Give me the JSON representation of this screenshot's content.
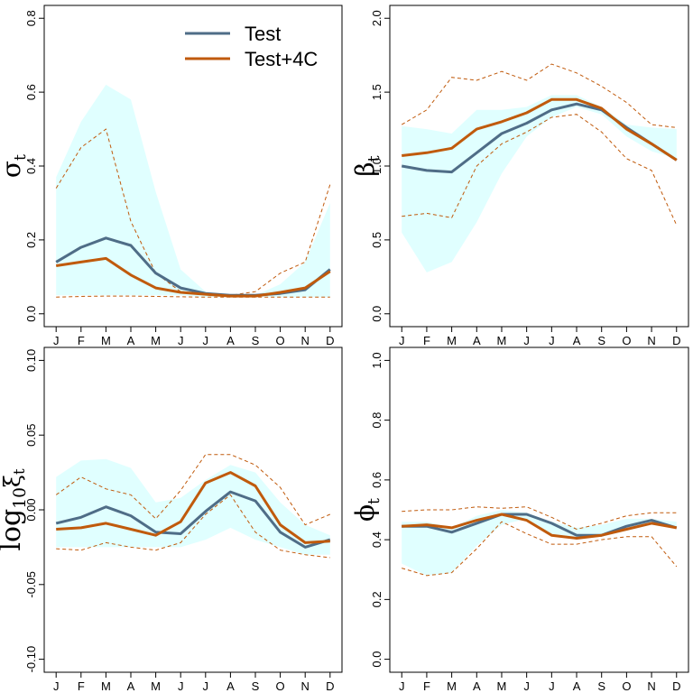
{
  "chart_data": [
    {
      "type": "line",
      "ylabel": "σ",
      "ylabel_sub": "t",
      "categories": [
        "J",
        "F",
        "M",
        "A",
        "M",
        "J",
        "J",
        "A",
        "S",
        "O",
        "N",
        "D"
      ],
      "ylim": [
        0,
        0.8
      ],
      "yticks": [
        "0.0",
        "0.2",
        "0.4",
        "0.6",
        "0.8"
      ],
      "yticks_values": [
        0,
        0.2,
        0.4,
        0.6,
        0.8
      ],
      "band": {
        "lower": [
          0.05,
          0.05,
          0.05,
          0.05,
          0.05,
          0.05,
          0.045,
          0.045,
          0.045,
          0.045,
          0.045,
          0.045
        ],
        "upper": [
          0.37,
          0.52,
          0.62,
          0.58,
          0.33,
          0.12,
          0.06,
          0.05,
          0.05,
          0.08,
          0.14,
          0.3
        ],
        "color": "#E0FFFF"
      },
      "series": [
        {
          "name": "Test",
          "color": "#4F6D87",
          "values": [
            0.14,
            0.18,
            0.205,
            0.185,
            0.11,
            0.07,
            0.055,
            0.05,
            0.05,
            0.055,
            0.065,
            0.12
          ]
        },
        {
          "name": "Test+4C",
          "color": "#C05A0C",
          "values": [
            0.13,
            0.14,
            0.15,
            0.105,
            0.07,
            0.058,
            0.053,
            0.048,
            0.048,
            0.058,
            0.07,
            0.115
          ]
        }
      ],
      "dashed": [
        {
          "color": "#C05A0C",
          "values": [
            0.045,
            0.047,
            0.048,
            0.048,
            0.047,
            0.046,
            0.045,
            0.045,
            0.045,
            0.045,
            0.045,
            0.045
          ]
        },
        {
          "color": "#C05A0C",
          "values": [
            0.34,
            0.45,
            0.5,
            0.25,
            0.11,
            0.06,
            0.055,
            0.05,
            0.06,
            0.11,
            0.14,
            0.35
          ]
        }
      ],
      "legend": {
        "position": "top-right",
        "entries": [
          "Test",
          "Test+4C"
        ]
      }
    },
    {
      "type": "line",
      "ylabel": "β",
      "ylabel_sub": "t",
      "categories": [
        "J",
        "F",
        "M",
        "A",
        "M",
        "J",
        "J",
        "A",
        "S",
        "O",
        "N",
        "D"
      ],
      "ylim": [
        0,
        2
      ],
      "yticks": [
        "0.0",
        "0.5",
        "1.0",
        "1.5",
        "2.0"
      ],
      "yticks_values": [
        0,
        0.5,
        1.0,
        1.5,
        2.0
      ],
      "band": {
        "lower": [
          0.55,
          0.28,
          0.35,
          0.62,
          0.95,
          1.2,
          1.33,
          1.4,
          1.35,
          1.2,
          1.1,
          1.05
        ],
        "upper": [
          1.27,
          1.25,
          1.22,
          1.38,
          1.38,
          1.4,
          1.48,
          1.48,
          1.4,
          1.28,
          1.26,
          1.25
        ],
        "color": "#E0FFFF"
      },
      "series": [
        {
          "name": "Test",
          "color": "#4F6D87",
          "values": [
            1.0,
            0.97,
            0.96,
            1.09,
            1.22,
            1.29,
            1.38,
            1.42,
            1.38,
            1.26,
            1.15,
            1.04
          ]
        },
        {
          "name": "Test+4C",
          "color": "#C05A0C",
          "values": [
            1.07,
            1.09,
            1.12,
            1.25,
            1.3,
            1.36,
            1.45,
            1.45,
            1.39,
            1.25,
            1.15,
            1.04
          ]
        }
      ],
      "dashed": [
        {
          "color": "#C05A0C",
          "values": [
            0.66,
            0.68,
            0.65,
            1.0,
            1.15,
            1.23,
            1.33,
            1.35,
            1.23,
            1.05,
            0.97,
            0.6
          ]
        },
        {
          "color": "#C05A0C",
          "values": [
            1.28,
            1.38,
            1.6,
            1.58,
            1.64,
            1.58,
            1.69,
            1.63,
            1.54,
            1.43,
            1.28,
            1.26
          ]
        }
      ]
    },
    {
      "type": "line",
      "ylabel": "log",
      "ylabel_sub": "10",
      "ylabel_tail": "ξ",
      "ylabel_tail_sub": "t",
      "categories": [
        "J",
        "F",
        "M",
        "A",
        "M",
        "J",
        "J",
        "A",
        "S",
        "O",
        "N",
        "D"
      ],
      "ylim": [
        -0.1,
        0.1
      ],
      "yticks": [
        "-0.10",
        "-0.05",
        "0.00",
        "0.05",
        "0.10"
      ],
      "yticks_values": [
        -0.1,
        -0.05,
        0,
        0.05,
        0.1
      ],
      "band": {
        "lower": [
          -0.025,
          -0.025,
          -0.025,
          -0.025,
          -0.025,
          -0.025,
          -0.02,
          -0.012,
          -0.02,
          -0.025,
          -0.03,
          -0.03
        ],
        "upper": [
          0.022,
          0.033,
          0.034,
          0.028,
          0.005,
          0.008,
          0.02,
          0.03,
          0.025,
          0.005,
          -0.01,
          -0.017
        ],
        "color": "#E0FFFF"
      },
      "series": [
        {
          "name": "Test",
          "color": "#4F6D87",
          "values": [
            -0.009,
            -0.005,
            0.002,
            -0.004,
            -0.015,
            -0.016,
            -0.001,
            0.012,
            0.006,
            -0.015,
            -0.025,
            -0.02
          ]
        },
        {
          "name": "Test+4C",
          "color": "#C05A0C",
          "values": [
            -0.013,
            -0.012,
            -0.009,
            -0.013,
            -0.017,
            -0.008,
            0.018,
            0.025,
            0.016,
            -0.01,
            -0.022,
            -0.021
          ]
        }
      ],
      "dashed": [
        {
          "color": "#C05A0C",
          "values": [
            -0.026,
            -0.027,
            -0.022,
            -0.025,
            -0.027,
            -0.022,
            -0.003,
            0.01,
            -0.015,
            -0.027,
            -0.03,
            -0.032
          ]
        },
        {
          "color": "#C05A0C",
          "values": [
            0.01,
            0.022,
            0.014,
            0.01,
            -0.006,
            0.013,
            0.037,
            0.037,
            0.03,
            0.015,
            -0.01,
            -0.003
          ]
        }
      ]
    },
    {
      "type": "line",
      "ylabel": "ϕ",
      "ylabel_sub": "t",
      "categories": [
        "J",
        "F",
        "M",
        "A",
        "M",
        "J",
        "J",
        "A",
        "S",
        "O",
        "N",
        "D"
      ],
      "ylim": [
        0,
        1
      ],
      "yticks": [
        "0.0",
        "0.2",
        "0.4",
        "0.6",
        "0.8",
        "1.0"
      ],
      "yticks_values": [
        0,
        0.2,
        0.4,
        0.6,
        0.8,
        1.0
      ],
      "band": {
        "lower": [
          0.32,
          0.28,
          0.29,
          0.38,
          0.45,
          0.47,
          0.42,
          0.4,
          0.41,
          0.43,
          0.45,
          0.44
        ],
        "upper": [
          0.46,
          0.46,
          0.44,
          0.48,
          0.5,
          0.49,
          0.46,
          0.44,
          0.45,
          0.47,
          0.47,
          0.46
        ],
        "color": "#E0FFFF"
      },
      "series": [
        {
          "name": "Test",
          "color": "#4F6D87",
          "values": [
            0.445,
            0.445,
            0.425,
            0.455,
            0.485,
            0.485,
            0.455,
            0.415,
            0.415,
            0.445,
            0.465,
            0.44
          ]
        },
        {
          "name": "Test+4C",
          "color": "#C05A0C",
          "values": [
            0.445,
            0.45,
            0.44,
            0.465,
            0.485,
            0.465,
            0.415,
            0.405,
            0.415,
            0.435,
            0.455,
            0.44
          ]
        }
      ],
      "dashed": [
        {
          "color": "#C05A0C",
          "values": [
            0.305,
            0.28,
            0.29,
            0.37,
            0.46,
            0.42,
            0.385,
            0.385,
            0.4,
            0.41,
            0.41,
            0.31
          ]
        },
        {
          "color": "#C05A0C",
          "values": [
            0.495,
            0.5,
            0.5,
            0.51,
            0.505,
            0.51,
            0.475,
            0.435,
            0.455,
            0.48,
            0.49,
            0.49
          ]
        }
      ]
    }
  ]
}
